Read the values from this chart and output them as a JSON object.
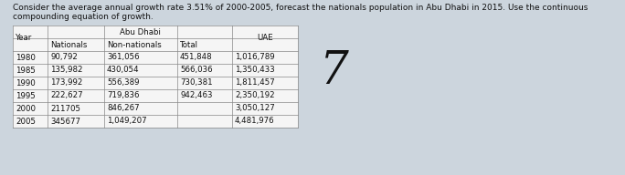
{
  "title_line1": "Consider the average annual growth rate 3.51% of 2000-2005, forecast the nationals population in Abu Dhabi in 2015. Use the continuous",
  "title_line2": "compounding equation of growth.",
  "title_fontsize": 6.5,
  "bg_color": "#ccd5dd",
  "table_bg": "#f5f5f5",
  "rows": [
    [
      "1980",
      "90,792",
      "361,056",
      "451,848",
      "1,016,789"
    ],
    [
      "1985",
      "135,982",
      "430,054",
      "566,036",
      "1,350,433"
    ],
    [
      "1990",
      "173,992",
      "556,389",
      "730,381",
      "1,811,457"
    ],
    [
      "1995",
      "222,627",
      "719,836",
      "942,463",
      "2,350,192"
    ],
    [
      "2000",
      "211705",
      "846,267",
      "",
      "3,050,127"
    ],
    [
      "2005",
      "345677",
      "1,049,207",
      "",
      "4,481,976"
    ]
  ],
  "seven_text": "7",
  "seven_fontsize": 36,
  "text_fontsize": 6.2,
  "line_color": "#888888",
  "text_color": "#111111"
}
